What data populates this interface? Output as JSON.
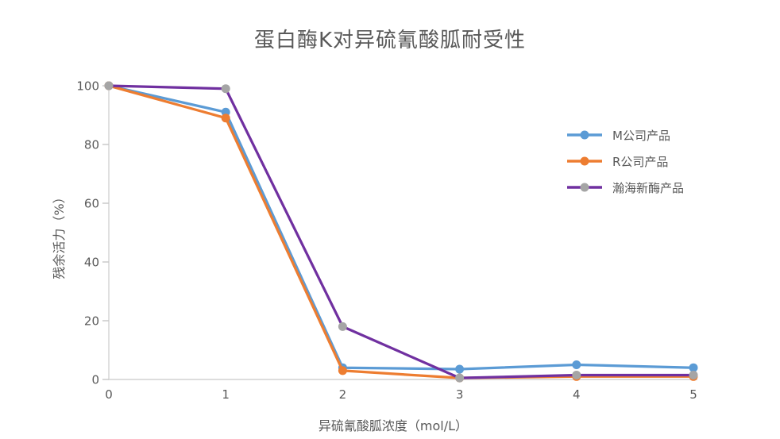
{
  "chart_data": {
    "type": "line",
    "title": "蛋白酶K对异硫氰酸胍耐受性",
    "xlabel": "异硫氰酸胍浓度（mol/L）",
    "ylabel": "残余活力（%）",
    "x": [
      0,
      1,
      2,
      3,
      4,
      5
    ],
    "x_ticks": [
      "0",
      "1",
      "2",
      "3",
      "4",
      "5"
    ],
    "y_ticks": [
      "0",
      "20",
      "40",
      "60",
      "80",
      "100"
    ],
    "xlim": [
      0,
      5
    ],
    "ylim": [
      0,
      100
    ],
    "grid": false,
    "legend_position": "right",
    "series": [
      {
        "name": "M公司产品",
        "line_color": "#5B9BD5",
        "marker_color": "#5B9BD5",
        "marker": "circle",
        "values": [
          100,
          91,
          4,
          3.5,
          5,
          4
        ]
      },
      {
        "name": "R公司产品",
        "line_color": "#ED7D31",
        "marker_color": "#ED7D31",
        "marker": "circle",
        "values": [
          100,
          89,
          3,
          0.5,
          1,
          1
        ]
      },
      {
        "name": "瀚海新酶产品",
        "line_color": "#7030A0",
        "marker_color": "#A5A5A5",
        "marker": "circle",
        "values": [
          100,
          99,
          18,
          0.5,
          1.5,
          1.5
        ]
      }
    ],
    "colors": {
      "text": "#595959",
      "axis_line": "#D2D2D2",
      "tick": "#C6C6C6"
    }
  }
}
